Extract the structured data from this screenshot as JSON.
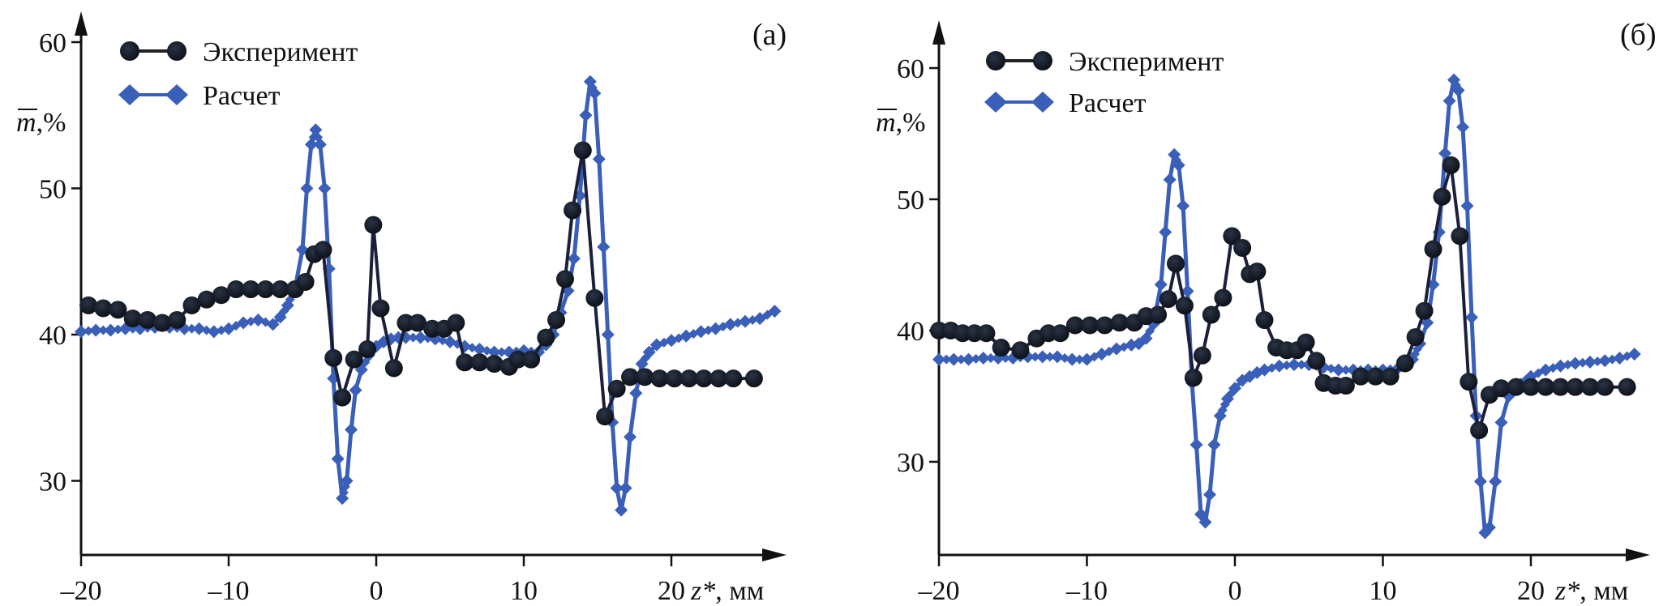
{
  "chart_data": [
    {
      "type": "line",
      "panel_label": "(a)",
      "xlabel": "z*, мм",
      "xlabel_var": "z*",
      "xlabel_unit": ", мм",
      "ylabel": "m̄,%",
      "ylabel_var": "m",
      "ylabel_unit": ",%",
      "xlim": [
        -20,
        27
      ],
      "ylim": [
        25,
        62
      ],
      "xticks": [
        -20,
        -10,
        0,
        10,
        20
      ],
      "xtick_labels": [
        "–20",
        "–10",
        "0",
        "10",
        "20"
      ],
      "yticks": [
        30,
        40,
        50,
        60
      ],
      "ytick_labels": [
        "30",
        "40",
        "50",
        "60"
      ],
      "grid": false,
      "legend_position": "top-left",
      "series": [
        {
          "name": "Эксперимент",
          "marker": "circle",
          "color": "#111827",
          "x": [
            -19.5,
            -18.5,
            -17.5,
            -16.5,
            -15.5,
            -14.5,
            -13.5,
            -12.5,
            -11.5,
            -10.5,
            -9.5,
            -8.5,
            -7.5,
            -6.5,
            -5.5,
            -4.8,
            -4.2,
            -3.6,
            -2.9,
            -2.3,
            -1.5,
            -0.6,
            -0.2,
            0.3,
            1.2,
            2.0,
            2.8,
            3.8,
            4.6,
            5.4,
            6.0,
            7.0,
            8.0,
            9.0,
            9.6,
            10.5,
            11.5,
            12.2,
            12.8,
            13.3,
            14.0,
            14.8,
            15.5,
            16.3,
            17.2,
            18.2,
            19.2,
            20.2,
            21.2,
            22.2,
            23.2,
            24.2,
            25.6
          ],
          "y": [
            42.0,
            41.8,
            41.7,
            41.1,
            41.0,
            40.8,
            41.0,
            42.0,
            42.4,
            42.7,
            43.1,
            43.1,
            43.1,
            43.1,
            43.1,
            43.6,
            45.5,
            45.8,
            38.4,
            35.7,
            38.3,
            39.0,
            47.5,
            41.8,
            37.7,
            40.8,
            40.8,
            40.4,
            40.4,
            40.8,
            38.1,
            38.1,
            38.0,
            37.8,
            38.3,
            38.3,
            39.8,
            41.0,
            43.8,
            48.5,
            52.6,
            42.5,
            34.4,
            36.3,
            37.1,
            37.1,
            37.0,
            37.0,
            37.0,
            37.0,
            37.0,
            37.0,
            37.0
          ]
        },
        {
          "name": "Расчет",
          "marker": "diamond",
          "color": "#3a5fb8",
          "x": [
            -20,
            -19,
            -18,
            -17,
            -16,
            -15,
            -14,
            -13,
            -12,
            -11,
            -10,
            -9,
            -8,
            -7,
            -6.5,
            -6,
            -5.5,
            -5,
            -4.7,
            -4.4,
            -4.1,
            -3.8,
            -3.5,
            -3.2,
            -2.9,
            -2.6,
            -2.3,
            -2.0,
            -1.7,
            -1.4,
            -1.0,
            -0.5,
            0,
            0.5,
            1,
            1.5,
            2,
            3,
            4,
            5,
            6,
            7,
            8,
            9,
            10,
            11,
            11.5,
            12,
            12.5,
            13,
            13.4,
            13.8,
            14.2,
            14.5,
            14.8,
            15.1,
            15.4,
            15.7,
            16.0,
            16.3,
            16.6,
            16.9,
            17.2,
            17.6,
            18,
            18.5,
            19,
            20,
            21,
            22,
            23,
            24,
            25,
            26,
            27
          ],
          "y": [
            40.2,
            40.3,
            40.3,
            40.4,
            40.4,
            40.5,
            40.5,
            40.4,
            40.4,
            40.2,
            40.4,
            40.8,
            41.0,
            40.7,
            41.2,
            42.0,
            43.2,
            45.8,
            50.0,
            53.0,
            54.0,
            53.0,
            50.0,
            44.5,
            37.0,
            31.5,
            28.8,
            30.0,
            33.5,
            36.2,
            37.6,
            38.6,
            39.2,
            39.5,
            39.7,
            39.8,
            39.8,
            39.8,
            39.7,
            39.5,
            39.2,
            39.0,
            38.8,
            38.8,
            38.9,
            38.8,
            39.3,
            40.0,
            41.5,
            43.0,
            45.2,
            49.5,
            55.0,
            57.3,
            56.5,
            52.0,
            46.0,
            40.0,
            34.0,
            29.5,
            28.0,
            29.5,
            33.0,
            36.0,
            38.0,
            38.8,
            39.3,
            39.6,
            39.9,
            40.2,
            40.4,
            40.7,
            40.9,
            41.1,
            41.6
          ]
        }
      ]
    },
    {
      "type": "line",
      "panel_label": "(б)",
      "xlabel": "z*, мм",
      "xlabel_var": "z*",
      "xlabel_unit": ", мм",
      "ylabel": "m̄,%",
      "ylabel_var": "m",
      "ylabel_unit": ",%",
      "xlim": [
        -20,
        27
      ],
      "ylim": [
        23,
        64
      ],
      "xticks": [
        -20,
        -10,
        0,
        10,
        20
      ],
      "xtick_labels": [
        "–20",
        "–10",
        "0",
        "10",
        "20"
      ],
      "yticks": [
        30,
        40,
        50,
        60
      ],
      "ytick_labels": [
        "30",
        "40",
        "50",
        "60"
      ],
      "grid": false,
      "legend_position": "top-left",
      "series": [
        {
          "name": "Эксперимент",
          "marker": "circle",
          "color": "#111827",
          "x": [
            -20,
            -19.2,
            -18.4,
            -17.6,
            -16.8,
            -15.8,
            -14.5,
            -13.4,
            -12.6,
            -11.8,
            -10.8,
            -9.8,
            -8.8,
            -7.8,
            -6.8,
            -6.0,
            -5.2,
            -4.5,
            -4.0,
            -3.4,
            -2.8,
            -2.2,
            -1.6,
            -0.8,
            -0.2,
            0.5,
            1.0,
            1.5,
            2.0,
            2.8,
            3.5,
            4.2,
            4.8,
            5.5,
            6.0,
            6.8,
            7.5,
            8.5,
            9.5,
            10.5,
            11.5,
            12.2,
            12.8,
            13.4,
            14.0,
            14.6,
            15.2,
            15.8,
            16.5,
            17.2,
            18.0,
            19.0,
            20.0,
            21.0,
            22.0,
            23.0,
            24.0,
            25.0,
            26.5
          ],
          "y": [
            40.0,
            40.0,
            39.8,
            39.8,
            39.8,
            38.7,
            38.5,
            39.4,
            39.8,
            39.8,
            40.4,
            40.4,
            40.4,
            40.6,
            40.6,
            41.1,
            41.2,
            42.4,
            45.1,
            41.9,
            36.4,
            38.1,
            41.2,
            42.5,
            47.2,
            46.3,
            44.3,
            44.5,
            40.8,
            38.7,
            38.5,
            38.5,
            39.1,
            37.7,
            36.0,
            35.8,
            35.8,
            36.5,
            36.5,
            36.5,
            37.5,
            39.5,
            41.5,
            46.2,
            50.2,
            52.6,
            47.2,
            36.1,
            32.4,
            35.1,
            35.6,
            35.7,
            35.7,
            35.7,
            35.7,
            35.7,
            35.7,
            35.7,
            35.7
          ]
        },
        {
          "name": "Расчет",
          "marker": "diamond",
          "color": "#3a5fb8",
          "x": [
            -20,
            -19,
            -18,
            -17,
            -16,
            -15,
            -14,
            -13,
            -12,
            -11,
            -10,
            -9,
            -8,
            -7,
            -6.5,
            -6,
            -5.5,
            -5,
            -4.7,
            -4.4,
            -4.1,
            -3.8,
            -3.5,
            -3.2,
            -2.9,
            -2.6,
            -2.3,
            -2.0,
            -1.7,
            -1.4,
            -1.0,
            -0.5,
            0,
            0.5,
            1,
            1.5,
            2,
            3,
            4,
            5,
            6,
            7,
            8,
            9,
            10,
            11,
            11.5,
            12,
            12.5,
            13,
            13.4,
            13.8,
            14.2,
            14.5,
            14.8,
            15.1,
            15.4,
            15.7,
            16.0,
            16.3,
            16.6,
            16.9,
            17.2,
            17.6,
            18,
            18.5,
            19,
            20,
            21,
            22,
            23,
            24,
            25,
            26,
            27
          ],
          "y": [
            37.8,
            37.8,
            37.8,
            37.9,
            37.9,
            37.9,
            38.0,
            38.0,
            38.0,
            37.8,
            37.8,
            38.2,
            38.6,
            38.9,
            39.0,
            39.4,
            40.5,
            43.5,
            47.5,
            51.5,
            53.4,
            52.6,
            49.5,
            43.0,
            36.0,
            31.3,
            26.0,
            25.4,
            27.5,
            31.3,
            33.5,
            34.8,
            35.6,
            36.2,
            36.5,
            36.8,
            37.0,
            37.3,
            37.4,
            37.4,
            37.2,
            37.0,
            37.0,
            37.0,
            37.0,
            37.1,
            37.3,
            37.8,
            39.0,
            40.6,
            43.5,
            47.5,
            53.5,
            57.5,
            59.1,
            58.3,
            55.5,
            49.5,
            41.0,
            33.5,
            28.5,
            24.6,
            25.0,
            28.5,
            33.0,
            35.0,
            35.8,
            36.5,
            37.0,
            37.3,
            37.5,
            37.6,
            37.7,
            37.9,
            38.2
          ]
        }
      ]
    }
  ]
}
